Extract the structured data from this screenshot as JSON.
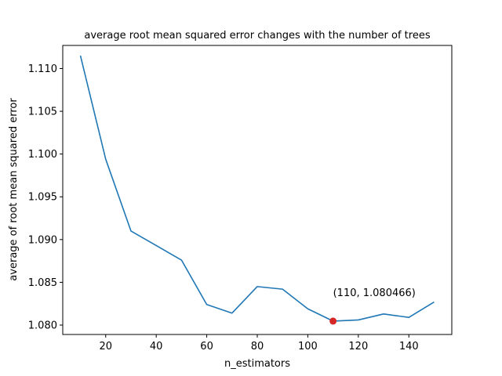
{
  "chart_data": {
    "type": "line",
    "title": "average root mean squared error changes with the number of trees",
    "xlabel": "n_estimators",
    "ylabel": "average of root mean squared error",
    "xlim": [
      3,
      157
    ],
    "ylim": [
      1.0789,
      1.1127
    ],
    "xticks": [
      20,
      40,
      60,
      80,
      100,
      120,
      140
    ],
    "yticks": [
      1.08,
      1.085,
      1.09,
      1.095,
      1.1,
      1.105,
      1.11
    ],
    "ytick_labels": [
      "1.080",
      "1.085",
      "1.090",
      "1.095",
      "1.100",
      "1.105",
      "1.110"
    ],
    "grid": false,
    "series": [
      {
        "color": "#1f77b4",
        "x": [
          10,
          20,
          30,
          40,
          50,
          60,
          70,
          80,
          90,
          100,
          110,
          120,
          130,
          140,
          150
        ],
        "y": [
          1.1115,
          1.0994,
          1.091,
          1.0893,
          1.0876,
          1.0824,
          1.0814,
          1.0845,
          1.0842,
          1.0819,
          1.080466,
          1.0806,
          1.0813,
          1.0809,
          1.0827
        ]
      }
    ],
    "highlight": {
      "x": 110,
      "y": 1.080466,
      "color": "#d62728",
      "label": "(110, 1.080466)"
    }
  }
}
